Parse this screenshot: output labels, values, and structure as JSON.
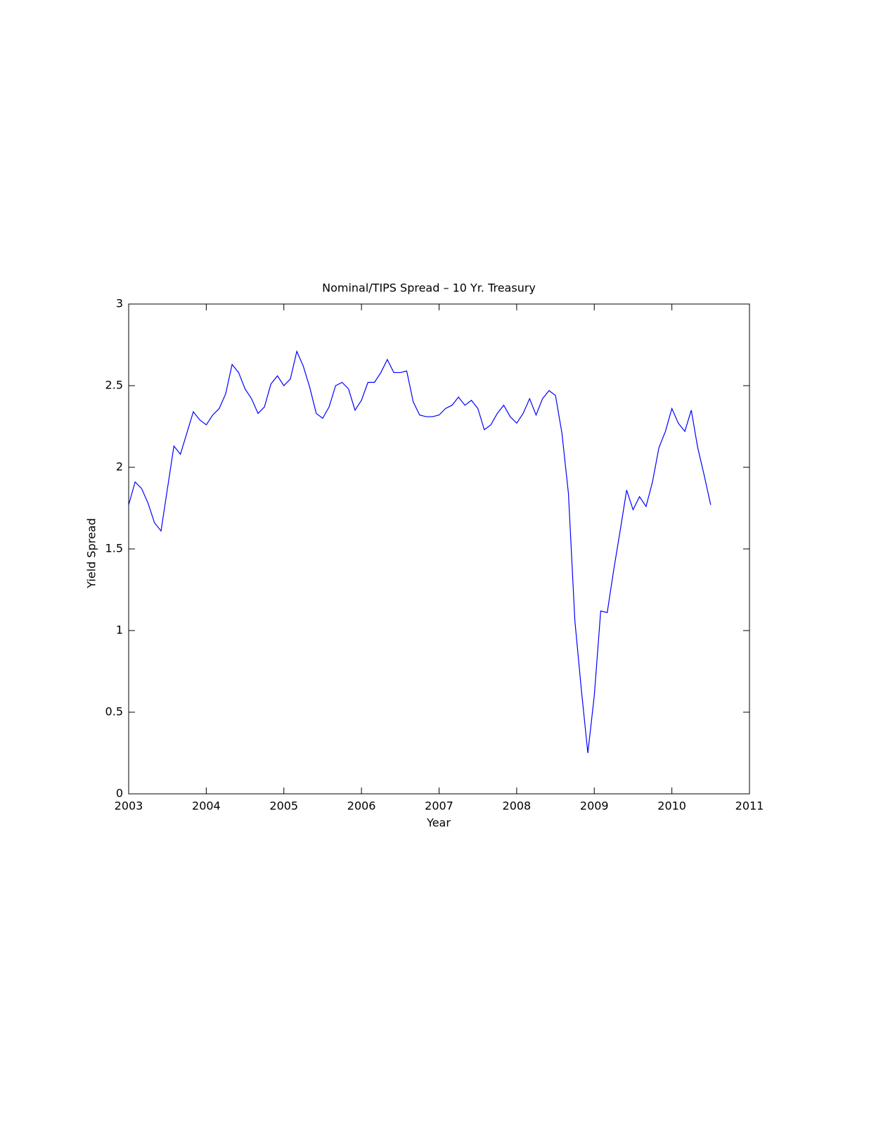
{
  "chart_data": {
    "type": "line",
    "title": "Nominal/TIPS Spread – 10 Yr. Treasury",
    "xlabel": "Year",
    "ylabel": "Yield Spread",
    "x": [
      2003,
      2003.083,
      2003.167,
      2003.25,
      2003.333,
      2003.417,
      2003.5,
      2003.583,
      2003.667,
      2003.75,
      2003.833,
      2003.917,
      2004,
      2004.083,
      2004.167,
      2004.25,
      2004.333,
      2004.417,
      2004.5,
      2004.583,
      2004.667,
      2004.75,
      2004.833,
      2004.917,
      2005,
      2005.083,
      2005.167,
      2005.25,
      2005.333,
      2005.417,
      2005.5,
      2005.583,
      2005.667,
      2005.75,
      2005.833,
      2005.917,
      2006,
      2006.083,
      2006.167,
      2006.25,
      2006.333,
      2006.417,
      2006.5,
      2006.583,
      2006.667,
      2006.75,
      2006.833,
      2006.917,
      2007,
      2007.083,
      2007.167,
      2007.25,
      2007.333,
      2007.417,
      2007.5,
      2007.583,
      2007.667,
      2007.75,
      2007.833,
      2007.917,
      2008,
      2008.083,
      2008.167,
      2008.25,
      2008.333,
      2008.417,
      2008.5,
      2008.583,
      2008.667,
      2008.75,
      2008.833,
      2008.917,
      2009,
      2009.083,
      2009.167,
      2009.25,
      2009.333,
      2009.417,
      2009.5,
      2009.583,
      2009.667,
      2009.75,
      2009.833,
      2009.917,
      2010,
      2010.083,
      2010.167,
      2010.25,
      2010.333,
      2010.417,
      2010.5
    ],
    "series": [
      {
        "name": "Spread",
        "color": "#0000ff",
        "values": [
          1.77,
          1.91,
          1.87,
          1.78,
          1.66,
          1.61,
          1.87,
          2.13,
          2.08,
          2.21,
          2.34,
          2.29,
          2.26,
          2.32,
          2.36,
          2.45,
          2.63,
          2.58,
          2.48,
          2.42,
          2.33,
          2.37,
          2.51,
          2.56,
          2.5,
          2.54,
          2.71,
          2.62,
          2.49,
          2.33,
          2.3,
          2.37,
          2.5,
          2.52,
          2.48,
          2.35,
          2.41,
          2.52,
          2.52,
          2.58,
          2.66,
          2.58,
          2.58,
          2.59,
          2.4,
          2.32,
          2.31,
          2.31,
          2.32,
          2.36,
          2.38,
          2.43,
          2.38,
          2.41,
          2.36,
          2.23,
          2.26,
          2.33,
          2.38,
          2.31,
          2.27,
          2.33,
          2.42,
          2.32,
          2.42,
          2.47,
          2.44,
          2.21,
          1.84,
          1.06,
          0.64,
          0.25,
          0.6,
          1.12,
          1.11,
          1.37,
          1.61,
          1.86,
          1.74,
          1.82,
          1.76,
          1.91,
          2.12,
          2.22,
          2.36,
          2.27,
          2.22,
          2.35,
          2.12,
          1.95,
          1.77
        ]
      }
    ],
    "xlim": [
      2003,
      2011
    ],
    "xticks": [
      2003,
      2004,
      2005,
      2006,
      2007,
      2008,
      2009,
      2010,
      2011
    ],
    "ylim": [
      0,
      3
    ],
    "yticks": [
      0,
      0.5,
      1,
      1.5,
      2,
      2.5,
      3
    ],
    "grid": false
  }
}
